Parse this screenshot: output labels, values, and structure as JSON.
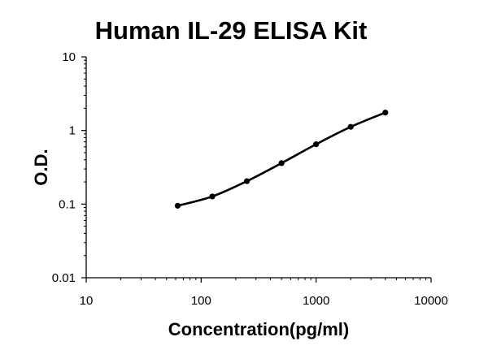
{
  "chart_data": {
    "type": "line",
    "title": "Human IL-29 ELISA Kit",
    "xlabel": "Concentration(pg/ml)",
    "ylabel": "O.D.",
    "x_scale": "log",
    "y_scale": "log",
    "xlim": [
      10,
      10000
    ],
    "ylim": [
      0.01,
      10
    ],
    "x_ticks": [
      "10",
      "100",
      "1000",
      "10000"
    ],
    "y_ticks": [
      "0.01",
      "0.1",
      "1",
      "10"
    ],
    "grid": false,
    "legend": "none",
    "series": [
      {
        "x": [
          62.5,
          125,
          250,
          500,
          1000,
          2000,
          4000
        ],
        "y": [
          0.095,
          0.127,
          0.205,
          0.36,
          0.65,
          1.12,
          1.75
        ]
      }
    ],
    "colors": {
      "line": "#000000",
      "marker": "#000000"
    }
  }
}
